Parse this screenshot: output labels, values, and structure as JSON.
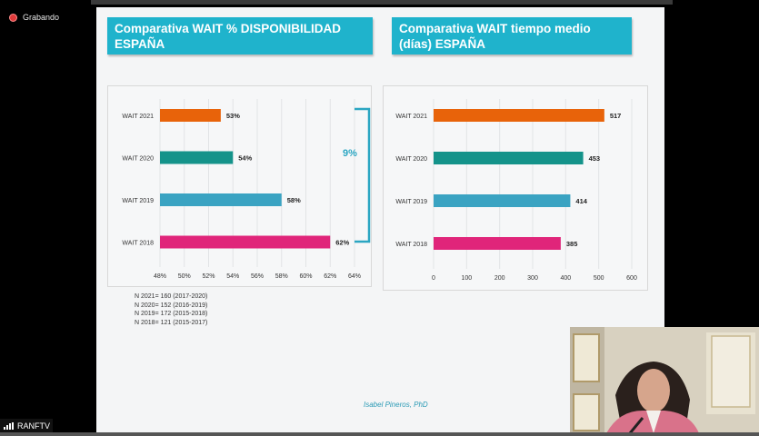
{
  "recording": {
    "label": "Grabando"
  },
  "stream": {
    "label": "RANFTV"
  },
  "slide": {
    "left_title": "Comparativa WAIT % DISPONIBILIDAD ESPAÑA",
    "right_title": "Comparativa WAIT tiempo medio (días) ESPAÑA",
    "bracket_label": "9%",
    "notes": [
      "N 2021= 160 (2017-2020)",
      "N 2020= 152 (2016-2019)",
      "N 2019= 172 (2015-2018)",
      "N 2018= 121 (2015-2017)"
    ],
    "author": "Isabel Pineros, PhD"
  },
  "colors": {
    "header": "#1fb3cc",
    "wait2021": "#e8630a",
    "wait2020": "#14938a",
    "wait2019": "#3aa3c2",
    "wait2018": "#e0257a",
    "bracket": "#2ba6c2"
  },
  "chart_data": [
    {
      "type": "bar",
      "orientation": "horizontal",
      "categories": [
        "WAIT 2021",
        "WAIT 2020",
        "WAIT 2019",
        "WAIT 2018"
      ],
      "values": [
        53,
        54,
        58,
        62
      ],
      "value_labels": [
        "53%",
        "54%",
        "58%",
        "62%"
      ],
      "xlim": [
        48,
        64
      ],
      "xticks": [
        "48%",
        "50%",
        "52%",
        "54%",
        "56%",
        "58%",
        "60%",
        "62%",
        "64%"
      ],
      "grid": true
    },
    {
      "type": "bar",
      "orientation": "horizontal",
      "categories": [
        "WAIT 2021",
        "WAIT 2020",
        "WAIT 2019",
        "WAIT 2018"
      ],
      "values": [
        517,
        453,
        414,
        385
      ],
      "value_labels": [
        "517",
        "453",
        "414",
        "385"
      ],
      "xlim": [
        0,
        600
      ],
      "xticks": [
        "0",
        "100",
        "200",
        "300",
        "400",
        "500",
        "600"
      ],
      "grid": true
    }
  ]
}
